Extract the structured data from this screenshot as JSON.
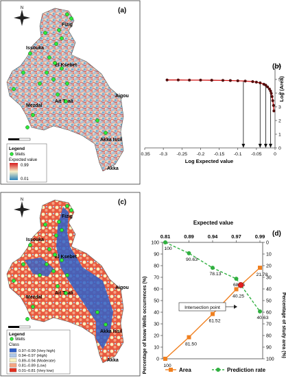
{
  "panel_labels": {
    "a": "(a)",
    "b": "(b)",
    "c": "(c)",
    "d": "(d)"
  },
  "maps": {
    "towns": [
      "Fizig",
      "Issouka",
      "El Ksebet",
      "Ait Tsali",
      "Aigou",
      "Mezdal",
      "Akka Issil",
      "Akka"
    ],
    "legend_title": "Legend",
    "wells_label": "Wells",
    "map_a": {
      "expected_value_label": "Expected value",
      "max_label": "0.99",
      "min_label": "0.01",
      "colors": {
        "high": "#d7191c",
        "mid": "#f5efc8",
        "low": "#2b83ba"
      }
    },
    "map_c": {
      "class_label": "Class",
      "classes": [
        {
          "label": "0.97–0.99 (Very high)",
          "color": "#3060c8"
        },
        {
          "label": "0.94–0.97 (High)",
          "color": "#aec8e8"
        },
        {
          "label": "0.89–0.94 (Moderate)",
          "color": "#f7f2c0"
        },
        {
          "label": "0.81–0.89 (Low)",
          "color": "#f4a582"
        },
        {
          "label": "0.01–0.81 (Very low)",
          "color": "#e03020"
        }
      ]
    }
  },
  "chart_data": [
    {
      "type": "line",
      "panel": "b",
      "xlabel": "Log Expected value",
      "ylabel": "Log (Area)",
      "xlim": [
        -0.35,
        0
      ],
      "ylim": [
        0,
        6
      ],
      "xticks": [
        "-0.35",
        "-0.3",
        "-0.25",
        "-0.2",
        "-0.15",
        "-0.1",
        "-0.05",
        "0"
      ],
      "yticks": [
        "0",
        "1",
        "2",
        "3",
        "4",
        "5",
        "6"
      ],
      "series": [
        {
          "x": [
            -0.29,
            -0.26,
            -0.23,
            -0.2,
            -0.17,
            -0.14,
            -0.12,
            -0.1,
            -0.08,
            -0.06,
            -0.05,
            -0.04,
            -0.03,
            -0.025,
            -0.02,
            -0.015,
            -0.012,
            -0.01,
            -0.008,
            -0.006,
            -0.004,
            -0.003
          ],
          "y": [
            4.96,
            4.96,
            4.95,
            4.95,
            4.94,
            4.93,
            4.92,
            4.9,
            4.88,
            4.84,
            4.8,
            4.75,
            4.65,
            4.58,
            4.45,
            4.3,
            4.15,
            3.98,
            3.75,
            3.45,
            3.1,
            2.7
          ]
        }
      ],
      "arrows_x": [
        -0.085,
        -0.04,
        -0.025,
        -0.012
      ],
      "colors": {
        "line": "#d01010",
        "marker": "#5a0a0a"
      }
    },
    {
      "type": "line",
      "panel": "d",
      "top_axis_label": "Expected value",
      "categories": [
        "0.81",
        "0.89",
        "0.94",
        "0.97",
        "0.99"
      ],
      "ylabel_left": "Percentage of know Wells occurrences (%)",
      "ylabel_right": "Percentage of study area (%)",
      "yticks_left": [
        "0",
        "10",
        "20",
        "30",
        "40",
        "50",
        "60",
        "70",
        "80",
        "90",
        "100"
      ],
      "yticks_right": [
        "100",
        "90",
        "80",
        "70",
        "60",
        "50",
        "40",
        "30",
        "20",
        "10",
        "0"
      ],
      "series": [
        {
          "name": "Area",
          "y_right": [
            100,
            81.5,
            61.52,
            40.25,
            21.78
          ],
          "labels": [
            "100",
            "81.50",
            "61.52",
            "40.25",
            "21.78"
          ],
          "color": "#f08020"
        },
        {
          "name": "Prediction rate",
          "y_left": [
            100,
            90.63,
            78.13,
            68.75,
            40.63
          ],
          "labels": [
            "100",
            "90.63",
            "78.13",
            "68.75",
            "40.63"
          ],
          "color": "#30b040"
        }
      ],
      "annotation": "Intersection point",
      "intersection_color": "#e02020"
    }
  ]
}
